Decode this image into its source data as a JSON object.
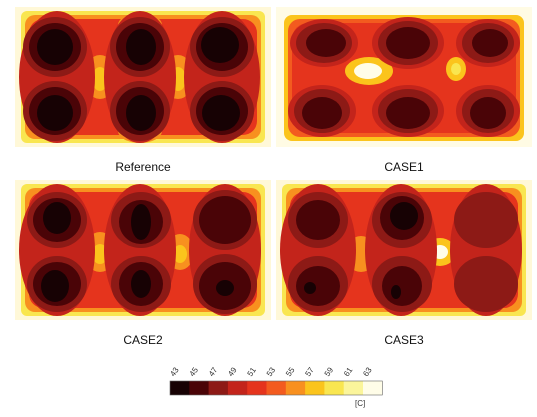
{
  "chart_data": {
    "type": "heatmap",
    "colorbar": {
      "ticks": [
        "43",
        "45",
        "47",
        "49",
        "51",
        "53",
        "55",
        "57",
        "59",
        "61",
        "63"
      ],
      "colors": [
        "#170204",
        "#4a0407",
        "#8d1a16",
        "#c3241b",
        "#e5341d",
        "#f35b1f",
        "#f8901f",
        "#fbc41c",
        "#f9e650",
        "#fbf59b",
        "#fffde8"
      ],
      "unit": "[C]"
    },
    "panels": [
      {
        "label": "Reference"
      },
      {
        "label": "CASE1"
      },
      {
        "label": "CASE2"
      },
      {
        "label": "CASE3"
      }
    ]
  }
}
